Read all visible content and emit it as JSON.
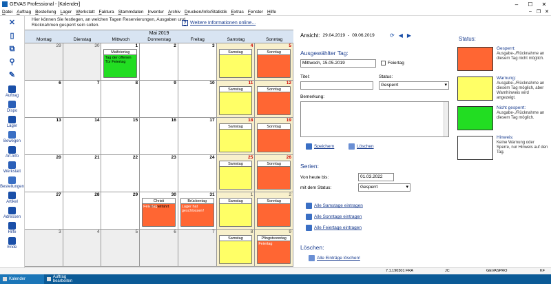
{
  "window": {
    "title": "GEVAS Professional - [Kalender]"
  },
  "menu": [
    "Datei",
    "Auftrag",
    "Bestellung",
    "Lager",
    "Werkstatt",
    "Faktura",
    "Stammdaten",
    "Inventur",
    "Archiv",
    "Drucken/Info/Statistik",
    "Extras",
    "Fenster",
    "Hilfe"
  ],
  "sidebar": {
    "items": [
      "Auftrag",
      "Dispo",
      "Lager",
      "Bewegen",
      "Art.Info",
      "Werkstatt",
      "Bestellungen",
      "Artikel",
      "Adressen",
      "Hilfe",
      "Ende"
    ]
  },
  "info": {
    "text": "Hier können Sie festlegen, an welchen Tagen Reservierungen, Ausgaben und Rücknahmen gesperrt sein sollen.",
    "link": "Weitere Informationen online..."
  },
  "calendar": {
    "month": "Mai 2019",
    "weekdays": [
      "Montag",
      "Dienstag",
      "Mittwoch",
      "Donnerstag",
      "Freitag",
      "Samstag",
      "Sonntag"
    ],
    "weeks": [
      [
        {
          "n": "29",
          "o": true
        },
        {
          "n": "30",
          "o": true
        },
        {
          "n": "1",
          "ev": {
            "c": "green",
            "t": "Maifeiertag",
            "s": "Tag der offenen Tür Feiertag"
          }
        },
        {
          "n": "2"
        },
        {
          "n": "3"
        },
        {
          "n": "4",
          "red": true,
          "wk": true,
          "ev": {
            "c": "yellow",
            "t": "Samstag",
            "s": ""
          }
        },
        {
          "n": "5",
          "red": true,
          "wk": true,
          "ev": {
            "c": "orange",
            "t": "Sonntag",
            "s": ""
          }
        }
      ],
      [
        {
          "n": "6"
        },
        {
          "n": "7"
        },
        {
          "n": "8"
        },
        {
          "n": "9"
        },
        {
          "n": "10"
        },
        {
          "n": "11",
          "red": true,
          "wk": true,
          "ev": {
            "c": "yellow",
            "t": "Samstag",
            "s": ""
          }
        },
        {
          "n": "12",
          "red": true,
          "wk": true,
          "ev": {
            "c": "orange",
            "t": "Sonntag",
            "s": ""
          }
        }
      ],
      [
        {
          "n": "13"
        },
        {
          "n": "14"
        },
        {
          "n": "15"
        },
        {
          "n": "16"
        },
        {
          "n": "17"
        },
        {
          "n": "18",
          "red": true,
          "wk": true,
          "ev": {
            "c": "yellow",
            "t": "Samstag",
            "s": ""
          }
        },
        {
          "n": "19",
          "red": true,
          "wk": true,
          "ev": {
            "c": "orange",
            "t": "Sonntag",
            "s": ""
          }
        }
      ],
      [
        {
          "n": "20"
        },
        {
          "n": "21"
        },
        {
          "n": "22"
        },
        {
          "n": "23"
        },
        {
          "n": "24"
        },
        {
          "n": "25",
          "red": true,
          "wk": true,
          "ev": {
            "c": "yellow",
            "t": "Samstag",
            "s": ""
          }
        },
        {
          "n": "26",
          "red": true,
          "wk": true,
          "ev": {
            "c": "orange",
            "t": "Sonntag",
            "s": ""
          }
        }
      ],
      [
        {
          "n": "27"
        },
        {
          "n": "28"
        },
        {
          "n": "29"
        },
        {
          "n": "30",
          "ev": {
            "c": "orange",
            "t": "Christi Himmelfahrt",
            "s": "Feiertag"
          }
        },
        {
          "n": "31",
          "ev": {
            "c": "orange",
            "t": "Brückentag",
            "s": "Lager hat geschlossen!"
          }
        },
        {
          "n": "1",
          "o": true,
          "wk": true,
          "ev": {
            "c": "yellow",
            "t": "Samstag",
            "s": ""
          }
        },
        {
          "n": "2",
          "o": true,
          "wk": true,
          "ev": {
            "c": "orange",
            "t": "Sonntag",
            "s": ""
          }
        }
      ],
      [
        {
          "n": "3",
          "o": true
        },
        {
          "n": "4",
          "o": true
        },
        {
          "n": "5",
          "o": true
        },
        {
          "n": "6",
          "o": true
        },
        {
          "n": "7",
          "o": true
        },
        {
          "n": "8",
          "o": true,
          "wk": true,
          "ev": {
            "c": "yellow",
            "t": "Samstag",
            "s": ""
          }
        },
        {
          "n": "9",
          "o": true,
          "wk": true,
          "ev": {
            "c": "orange",
            "t": "Pfingstsonntag",
            "s": "Feiertag"
          }
        }
      ]
    ]
  },
  "panel": {
    "ansicht_label": "Ansicht:",
    "date_from": "29.04.2019",
    "date_sep": "-",
    "date_to": "09.06.2019",
    "selected_title": "Ausgewählter Tag:",
    "selected_date": "Mittwoch, 15.05.2019",
    "feiertag_label": "Feiertag",
    "titel_label": "Titel:",
    "titel_value": "",
    "status_label": "Status:",
    "status_value": "Gesperrt",
    "bemerkung_label": "Bemerkung:",
    "save": "Speichern",
    "delete": "Löschen",
    "serien_title": "Serien:",
    "from_today_label": "Von heute bis:",
    "from_today_value": "01.03.2022",
    "with_status_label": "mit dem Status:",
    "with_status_value": "Gesperrt",
    "add_sat": "Alle Samstage eintragen",
    "add_sun": "Alle Sonntage eintragen",
    "add_hol": "Alle Feiertage eintragen",
    "loeschen_title": "Löschen:",
    "delete_all": "Alle Einträge löschen!"
  },
  "status": {
    "title": "Status:",
    "items": [
      {
        "color": "#ff6633",
        "title": "Gesperrt:",
        "desc": "Ausgabe-,/Rücknahme an diesem Tag nicht möglich."
      },
      {
        "color": "#ffff66",
        "title": "Warnung:",
        "desc": "Ausgabe-,/Rücknahme an diesem Tag möglich, aber Warnhinweis wird angezeigt."
      },
      {
        "color": "#22dd22",
        "title": "Nicht gesperrt:",
        "desc": "Ausgabe-,/Rücknahme an diesem Tag möglich."
      },
      {
        "color": "#ffffff",
        "title": "Hinweis:",
        "desc": "Keine Warnung oder Sperre, nur Hinweis auf den Tag."
      }
    ]
  },
  "statusbar": {
    "version": "7.1.190301 FRA",
    "user": "JC",
    "db": "GEVASPRO",
    "kf": "KF"
  },
  "taskbar": {
    "items": [
      "Kalender",
      "Auftrag bearbeiten"
    ]
  }
}
